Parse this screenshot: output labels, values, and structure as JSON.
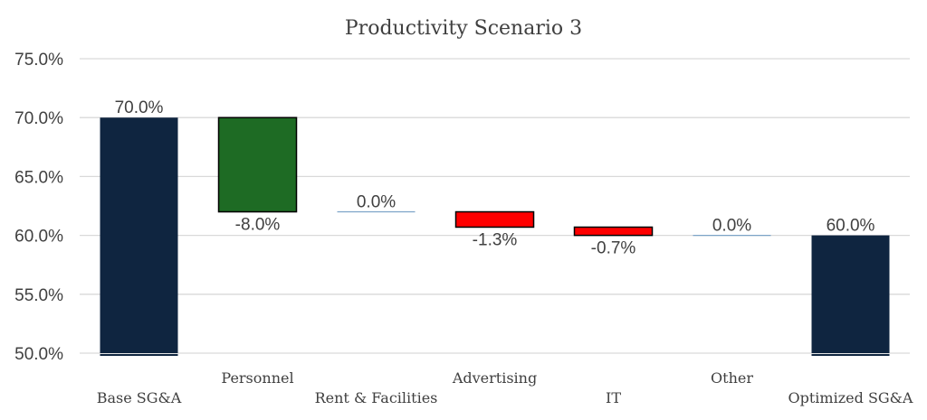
{
  "chart_data": {
    "type": "bar",
    "subtype": "waterfall",
    "title": "Productivity Scenario 3",
    "xlabel": "",
    "ylabel": "",
    "ylim": [
      50,
      75
    ],
    "yticks": [
      "50.0%",
      "55.0%",
      "60.0%",
      "65.0%",
      "70.0%",
      "75.0%"
    ],
    "ytick_values": [
      50,
      55,
      60,
      65,
      70,
      75
    ],
    "grid": true,
    "legend": "none",
    "categories": [
      "Base SG&A",
      "Personnel",
      "Rent & Facilities",
      "Advertising",
      "IT",
      "Other",
      "Optimized SG&A"
    ],
    "bars": [
      {
        "category": "Base SG&A",
        "kind": "total",
        "start": 0,
        "end": 70.0,
        "label": "70.0%",
        "color": "#0f2540"
      },
      {
        "category": "Personnel",
        "kind": "delta",
        "start": 70.0,
        "end": 62.0,
        "label": "-8.0%",
        "color": "#1e6b24"
      },
      {
        "category": "Rent & Facilities",
        "kind": "delta",
        "start": 62.0,
        "end": 62.0,
        "label": "0.0%",
        "color": "#7da4c8"
      },
      {
        "category": "Advertising",
        "kind": "delta",
        "start": 62.0,
        "end": 60.7,
        "label": "-1.3%",
        "color": "#ff0000"
      },
      {
        "category": "IT",
        "kind": "delta",
        "start": 60.7,
        "end": 60.0,
        "label": "-0.7%",
        "color": "#ff0000"
      },
      {
        "category": "Other",
        "kind": "delta",
        "start": 60.0,
        "end": 60.0,
        "label": "0.0%",
        "color": "#7da4c8"
      },
      {
        "category": "Optimized SG&A",
        "kind": "total",
        "start": 0,
        "end": 60.0,
        "label": "60.0%",
        "color": "#0f2540"
      }
    ]
  }
}
